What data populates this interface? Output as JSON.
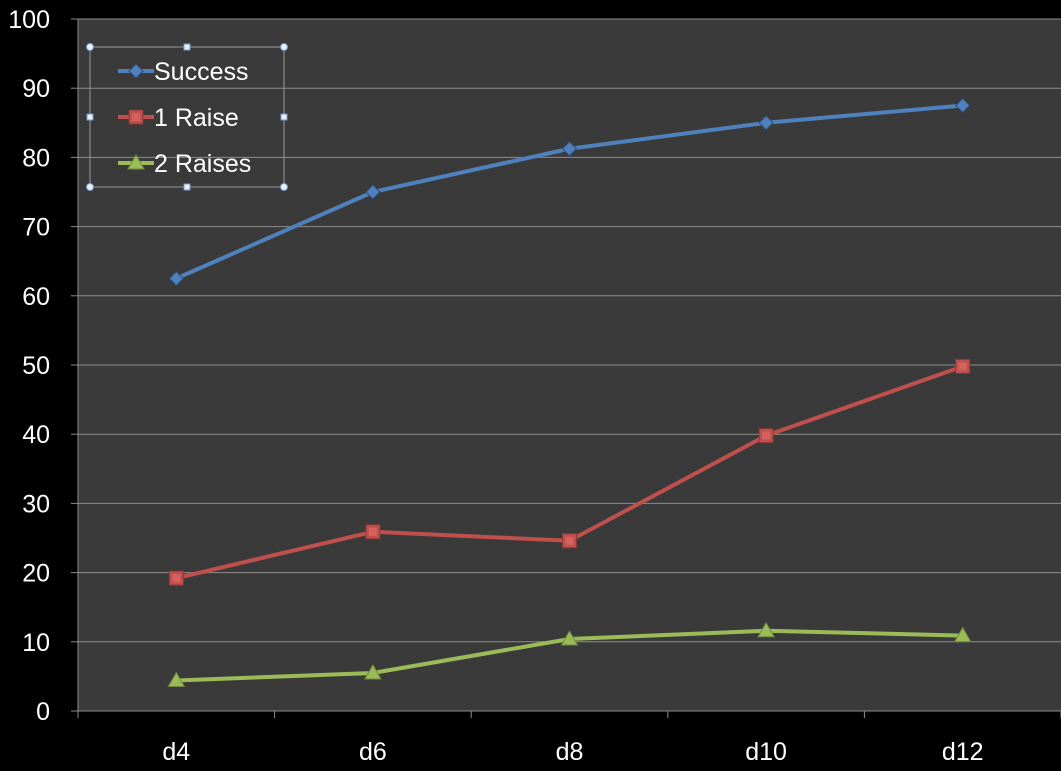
{
  "chart_data": {
    "type": "line",
    "title": "",
    "xlabel": "",
    "ylabel": "",
    "categories": [
      "d4",
      "d6",
      "d8",
      "d10",
      "d12"
    ],
    "ylim": [
      0,
      100
    ],
    "yticks": [
      "0",
      "10",
      "20",
      "30",
      "40",
      "50",
      "60",
      "70",
      "80",
      "90",
      "100"
    ],
    "grid": "horizontal",
    "legend_position": "top-left",
    "plot_background": "#3a3a3a",
    "background": "#000000",
    "series": [
      {
        "name": "Success",
        "color": "#4f81bd",
        "marker": "diamond",
        "values": [
          62.5,
          75,
          81.25,
          85,
          87.5
        ]
      },
      {
        "name": "1 Raise",
        "color": "#c0504d",
        "marker": "square",
        "values": [
          19.2,
          25.9,
          24.6,
          39.8,
          49.8
        ]
      },
      {
        "name": "2 Raises",
        "color": "#9bbb59",
        "marker": "triangle",
        "values": [
          4.4,
          5.5,
          10.4,
          11.6,
          10.9
        ]
      }
    ]
  }
}
